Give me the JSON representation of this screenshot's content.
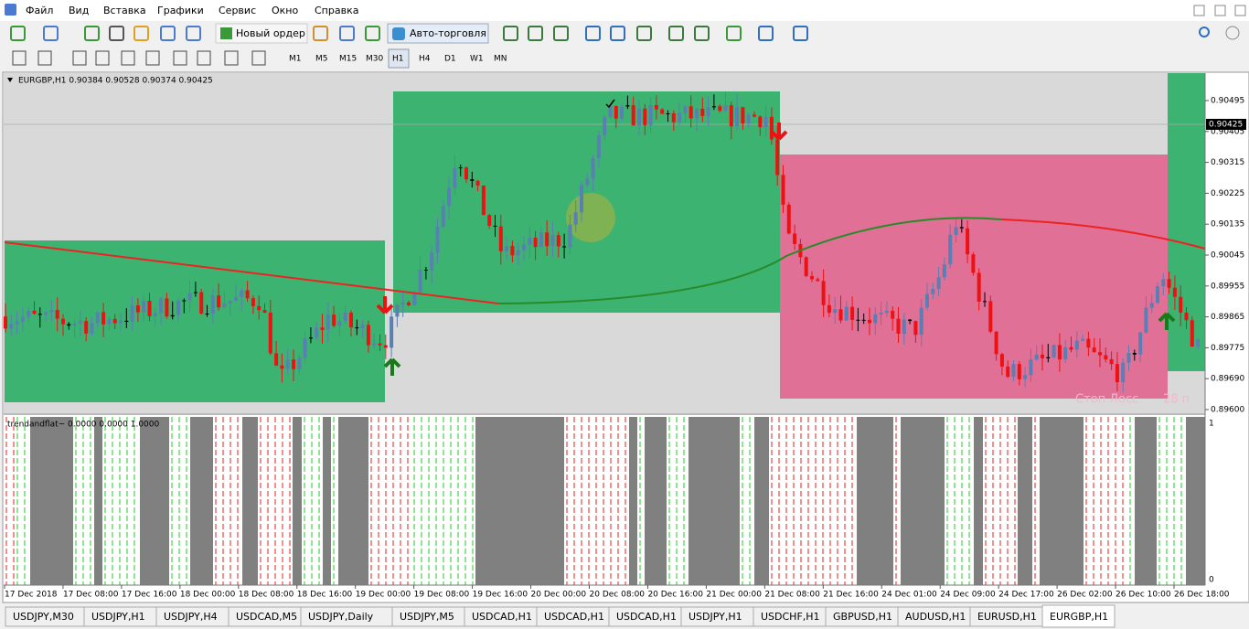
{
  "menu": [
    "Файл",
    "Вид",
    "Вставка",
    "Графики",
    "Сервис",
    "Окно",
    "Справка"
  ],
  "toolbar": {
    "new_order": "Новый ордер",
    "auto_trading": "Авто-торговля"
  },
  "timeframes": [
    "M1",
    "M5",
    "M15",
    "M30",
    "H1",
    "H4",
    "D1",
    "W1",
    "MN"
  ],
  "chart": {
    "header": "EURGBP,H1  0.90384 0.90528 0.90374 0.90425",
    "price_labels": [
      "0.90495",
      "0.90405",
      "0.90315",
      "0.90225",
      "0.90135",
      "0.90045",
      "0.89955",
      "0.89865",
      "0.89775",
      "0.89690",
      "0.89600"
    ],
    "current_price": "0.90425",
    "stop_loss_label": "Стоп Лосс",
    "stop_loss_value": "28 п",
    "time_labels": [
      "17 Dec 2018",
      "17 Dec 08:00",
      "17 Dec 16:00",
      "18 Dec 00:00",
      "18 Dec 08:00",
      "18 Dec 16:00",
      "19 Dec 00:00",
      "19 Dec 08:00",
      "19 Dec 16:00",
      "20 Dec 00:00",
      "20 Dec 08:00",
      "20 Dec 16:00",
      "21 Dec 00:00",
      "21 Dec 08:00",
      "21 Dec 16:00",
      "24 Dec 01:00",
      "24 Dec 09:00",
      "24 Dec 17:00",
      "26 Dec 02:00",
      "26 Dec 10:00",
      "26 Dec 18:00"
    ]
  },
  "indicator": {
    "label": "trendandflat~ 0.0000 0.0000 1.0000",
    "scale_max": "1",
    "scale_min": "0"
  },
  "tabs": [
    "USDJPY,M30",
    "USDJPY,H1",
    "USDJPY,H4",
    "USDCAD,M5",
    "USDJPY,Daily",
    "USDJPY,M5",
    "USDCAD,H1",
    "USDCAD,H1",
    "USDCAD,H1",
    "USDJPY,H1",
    "USDCHF,H1",
    "GBPUSD,H1",
    "AUDUSD,H1",
    "EURUSD,H1",
    "EURGBP,H1"
  ]
}
